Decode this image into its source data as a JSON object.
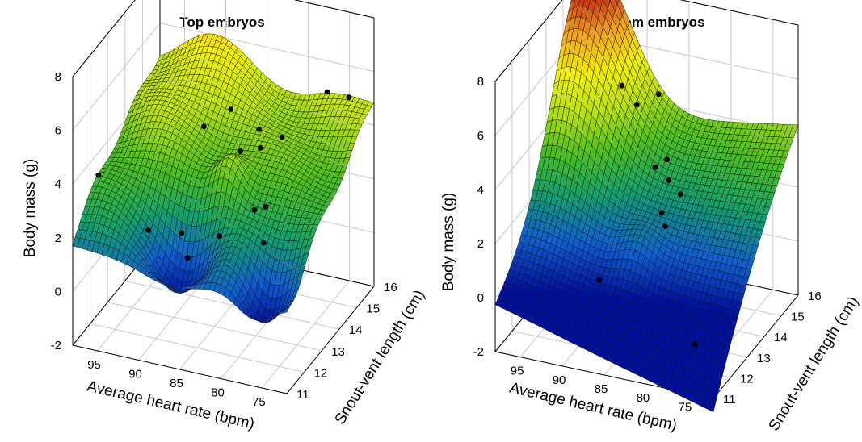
{
  "chart_data": [
    {
      "type": "surface3d",
      "title": "Top embryos",
      "xlabel": "Average heart rate (bpm)",
      "ylabel": "Snout-vent length (cm)",
      "zlabel": "Body mass (g)",
      "x_ticks": [
        "95",
        "90",
        "85",
        "80",
        "75"
      ],
      "y_ticks": [
        "11",
        "12",
        "13",
        "14",
        "15",
        "16"
      ],
      "z_ticks": [
        "-2",
        "0",
        "2",
        "4",
        "6",
        "8"
      ],
      "xlim": [
        98,
        72
      ],
      "ylim": [
        11,
        16
      ],
      "zlim": [
        -2,
        8
      ],
      "grid": true,
      "colormap": [
        "#0010a0",
        "#1060d0",
        "#12a06a",
        "#4cbf20",
        "#b8e010",
        "#f2f000",
        "#f0a020",
        "#c02010"
      ],
      "points": [
        {
          "x": 97,
          "y": 12.0,
          "z": 3.6
        },
        {
          "x": 92,
          "y": 12.5,
          "z": 1.5
        },
        {
          "x": 89,
          "y": 13.0,
          "z": 1.2
        },
        {
          "x": 87,
          "y": 12.4,
          "z": 0.9
        },
        {
          "x": 88,
          "y": 13.8,
          "z": 4.6
        },
        {
          "x": 86,
          "y": 14.4,
          "z": 4.9
        },
        {
          "x": 84,
          "y": 14.0,
          "z": 3.8
        },
        {
          "x": 83,
          "y": 14.6,
          "z": 4.2
        },
        {
          "x": 82,
          "y": 14.2,
          "z": 3.9
        },
        {
          "x": 80,
          "y": 14.5,
          "z": 4.2
        },
        {
          "x": 81,
          "y": 13.4,
          "z": 2.3
        },
        {
          "x": 79,
          "y": 13.1,
          "z": 2.8
        },
        {
          "x": 76,
          "y": 15.2,
          "z": 5.6
        },
        {
          "x": 74,
          "y": 15.5,
          "z": 5.3
        },
        {
          "x": 78,
          "y": 12.5,
          "z": 2.0
        },
        {
          "x": 84,
          "y": 12.8,
          "z": 1.6
        }
      ]
    },
    {
      "type": "surface3d",
      "title": "Bottom embryos",
      "xlabel": "Average heart rate (bpm)",
      "ylabel": "Snout-vent length (cm)",
      "zlabel": "Body mass (g)",
      "x_ticks": [
        "95",
        "90",
        "85",
        "80",
        "75"
      ],
      "y_ticks": [
        "11",
        "12",
        "13",
        "14",
        "15",
        "16"
      ],
      "z_ticks": [
        "-2",
        "0",
        "2",
        "4",
        "6",
        "8"
      ],
      "xlim": [
        98,
        72
      ],
      "ylim": [
        11,
        16
      ],
      "zlim": [
        -2,
        8
      ],
      "grid": true,
      "colormap": [
        "#0010a0",
        "#1060d0",
        "#12a06a",
        "#4cbf20",
        "#b8e010",
        "#f2f000",
        "#f0a020",
        "#c02010"
      ],
      "points": [
        {
          "x": 90,
          "y": 14.5,
          "z": 5.7
        },
        {
          "x": 88,
          "y": 14.4,
          "z": 5.2
        },
        {
          "x": 86,
          "y": 14.7,
          "z": 5.5
        },
        {
          "x": 85,
          "y": 14.0,
          "z": 3.4
        },
        {
          "x": 84,
          "y": 14.2,
          "z": 3.6
        },
        {
          "x": 83,
          "y": 13.8,
          "z": 3.2
        },
        {
          "x": 82,
          "y": 14.0,
          "z": 2.6
        },
        {
          "x": 83,
          "y": 13.4,
          "z": 2.3
        },
        {
          "x": 82,
          "y": 13.1,
          "z": 2.1
        },
        {
          "x": 88,
          "y": 12.2,
          "z": 0.4
        },
        {
          "x": 75,
          "y": 11.4,
          "z": -0.5
        }
      ]
    }
  ]
}
